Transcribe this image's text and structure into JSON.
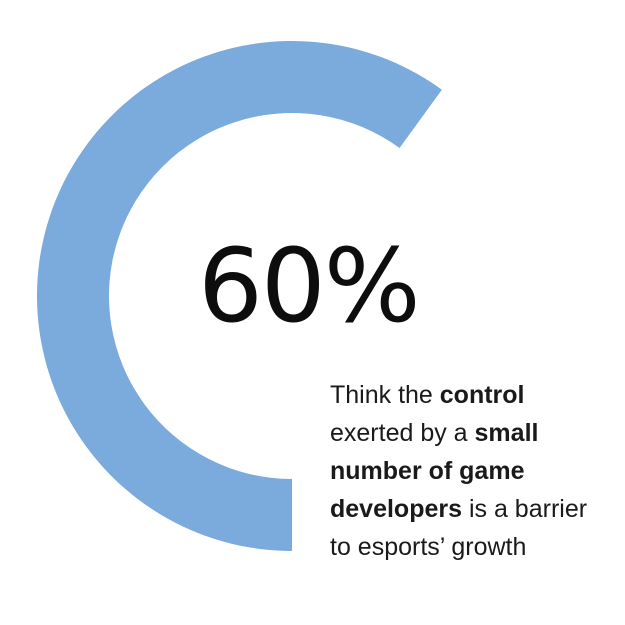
{
  "chart_data": {
    "type": "donut",
    "value_percent": 60,
    "max_percent": 100,
    "start": "top, clockwise",
    "fill_color": "#7aabdc",
    "background_color": "#ffffff",
    "headline": "60%",
    "caption_segments": [
      {
        "text": "Think the ",
        "bold": false
      },
      {
        "text": "control",
        "bold": true
      },
      {
        "text": "exerted by a ",
        "bold": false
      },
      {
        "text": "small",
        "bold": true
      },
      {
        "text": "number of game",
        "bold": true
      },
      {
        "text": "developers",
        "bold": true
      },
      {
        "text": " is a barrier",
        "bold": false
      },
      {
        "text": "to esports’ growth",
        "bold": false
      }
    ]
  }
}
